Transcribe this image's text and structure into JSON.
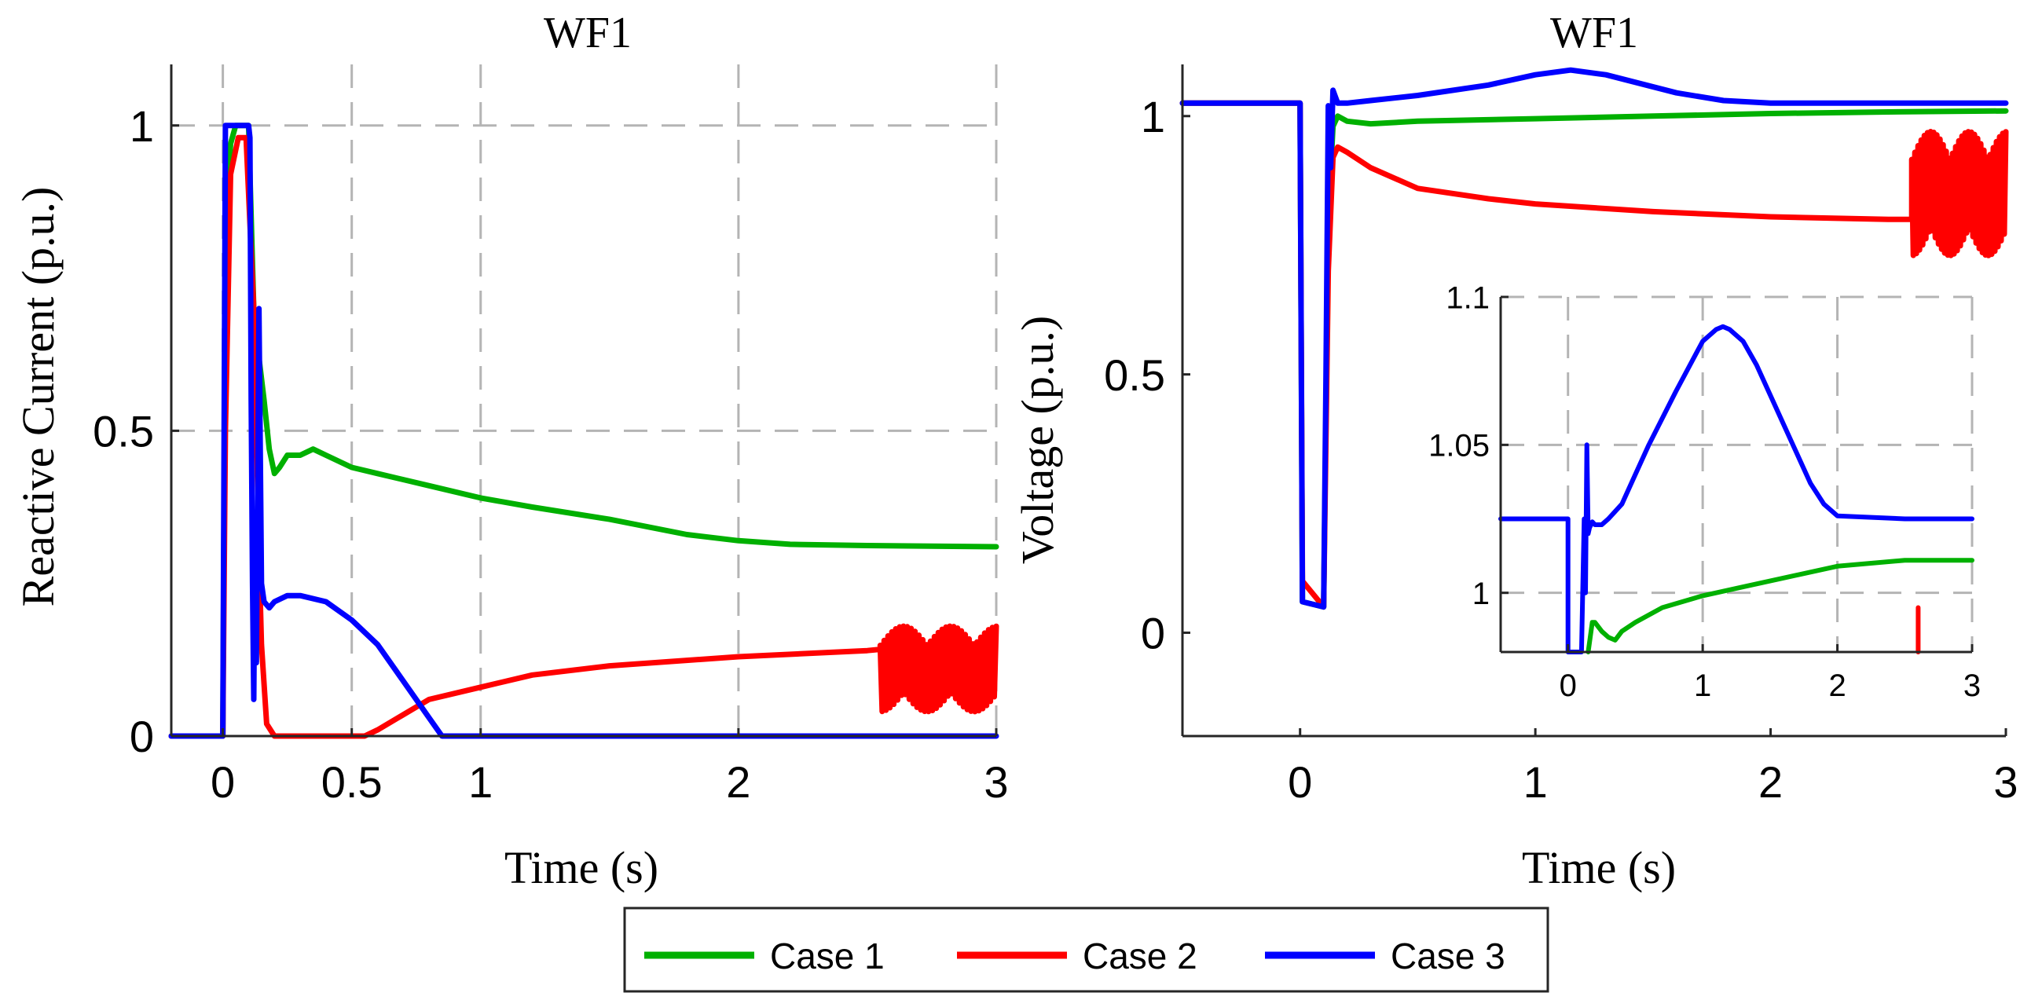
{
  "colors": {
    "case1": "#00b000",
    "case2": "#ff0000",
    "case3": "#0000ff",
    "grid": "#b4b4b4",
    "axis": "#262626"
  },
  "legend": {
    "placement": "bottom-center",
    "entries": [
      "Case 1",
      "Case 2",
      "Case 3"
    ]
  },
  "chart_data": [
    {
      "type": "line",
      "title": "WF1",
      "xlabel": "Time (s)",
      "ylabel": "Reactive Current (p.u.)",
      "xlim": [
        -0.2,
        3
      ],
      "ylim": [
        0,
        1.1
      ],
      "xticks": [
        0,
        0.5,
        1,
        2,
        3
      ],
      "xtick_labels": [
        "0",
        "0.5",
        "1",
        "2",
        "3"
      ],
      "yticks": [
        0,
        0.5,
        1
      ],
      "ytick_labels": [
        "0",
        "0.5",
        "1"
      ],
      "grid": true,
      "series": [
        {
          "name": "Case 1",
          "color": "#00b000",
          "x": [
            -0.2,
            0,
            0.01,
            0.03,
            0.05,
            0.07,
            0.1,
            0.11,
            0.12,
            0.13,
            0.14,
            0.16,
            0.18,
            0.2,
            0.22,
            0.25,
            0.3,
            0.35,
            0.4,
            0.5,
            0.6,
            0.8,
            1.0,
            1.2,
            1.5,
            1.8,
            2.0,
            2.2,
            2.5,
            3.0
          ],
          "y": [
            0,
            0,
            0.8,
            0.97,
            1.0,
            1.0,
            1.0,
            0.85,
            0.7,
            0.65,
            0.62,
            0.55,
            0.47,
            0.43,
            0.44,
            0.46,
            0.46,
            0.47,
            0.46,
            0.44,
            0.43,
            0.41,
            0.39,
            0.375,
            0.355,
            0.33,
            0.32,
            0.314,
            0.312,
            0.31
          ]
        },
        {
          "name": "Case 2",
          "color": "#ff0000",
          "x": [
            -0.2,
            0,
            0.01,
            0.03,
            0.06,
            0.09,
            0.12,
            0.14,
            0.15,
            0.17,
            0.2,
            0.5,
            0.55,
            0.6,
            0.7,
            0.8,
            1.0,
            1.2,
            1.5,
            2.0,
            2.5,
            2.55,
            2.6
          ],
          "y": [
            0,
            0,
            0.5,
            0.92,
            0.98,
            0.98,
            0.7,
            0.3,
            0.15,
            0.02,
            0,
            0,
            0,
            0.01,
            0.035,
            0.06,
            0.08,
            0.1,
            0.115,
            0.13,
            0.14,
            0.142,
            0.145
          ],
          "oscillation": {
            "from_x": 2.55,
            "to_x": 3.0,
            "center": 0.11,
            "amplitude": 0.07
          }
        },
        {
          "name": "Case 3",
          "color": "#0000ff",
          "x": [
            -0.2,
            0,
            0.01,
            0.1,
            0.105,
            0.11,
            0.115,
            0.12,
            0.125,
            0.13,
            0.14,
            0.15,
            0.16,
            0.18,
            0.2,
            0.25,
            0.3,
            0.4,
            0.5,
            0.6,
            0.7,
            0.8,
            0.85,
            3.0
          ],
          "y": [
            0,
            0,
            1.0,
            1.0,
            0.98,
            0.55,
            0.25,
            0.06,
            0.35,
            0.12,
            0.7,
            0.25,
            0.22,
            0.21,
            0.22,
            0.23,
            0.23,
            0.22,
            0.19,
            0.15,
            0.09,
            0.03,
            0,
            0
          ]
        }
      ]
    },
    {
      "type": "line",
      "title": "WF1",
      "xlabel": "Time (s)",
      "ylabel": "Voltage (p.u.)",
      "xlim": [
        -0.5,
        3
      ],
      "ylim": [
        -0.2,
        1.1
      ],
      "xticks": [
        0,
        1,
        2,
        3
      ],
      "xtick_labels": [
        "0",
        "1",
        "2",
        "3"
      ],
      "yticks": [
        0,
        0.5,
        1
      ],
      "ytick_labels": [
        "0",
        "0.5",
        "1"
      ],
      "grid": false,
      "series": [
        {
          "name": "Case 1",
          "color": "#00b000",
          "x": [
            -0.5,
            0,
            0.01,
            0.1,
            0.12,
            0.14,
            0.16,
            0.2,
            0.3,
            0.5,
            1.0,
            1.5,
            2.0,
            2.5,
            3.0
          ],
          "y": [
            1.025,
            1.025,
            0.06,
            0.05,
            0.8,
            0.98,
            1.0,
            0.99,
            0.985,
            0.99,
            0.995,
            1.0,
            1.005,
            1.008,
            1.01
          ]
        },
        {
          "name": "Case 2",
          "color": "#ff0000",
          "x": [
            -0.5,
            0,
            0.01,
            0.1,
            0.12,
            0.14,
            0.16,
            0.2,
            0.3,
            0.5,
            0.8,
            1.0,
            1.5,
            2.0,
            2.5,
            2.6
          ],
          "y": [
            1.025,
            1.025,
            0.1,
            0.05,
            0.7,
            0.92,
            0.94,
            0.93,
            0.9,
            0.86,
            0.84,
            0.83,
            0.815,
            0.805,
            0.8,
            0.8
          ],
          "oscillation": {
            "from_x": 2.6,
            "to_x": 3.0,
            "center": 0.85,
            "amplitude": 0.12
          }
        },
        {
          "name": "Case 3",
          "color": "#0000ff",
          "x": [
            -0.5,
            0,
            0.01,
            0.1,
            0.11,
            0.12,
            0.13,
            0.14,
            0.16,
            0.2,
            0.3,
            0.5,
            0.8,
            1.0,
            1.15,
            1.3,
            1.6,
            1.8,
            2.0,
            2.5,
            3.0
          ],
          "y": [
            1.025,
            1.025,
            0.06,
            0.05,
            0.5,
            1.02,
            0.9,
            1.05,
            1.025,
            1.025,
            1.03,
            1.04,
            1.06,
            1.08,
            1.089,
            1.08,
            1.045,
            1.03,
            1.025,
            1.025,
            1.025
          ]
        }
      ],
      "inset": {
        "xlim": [
          -0.5,
          3
        ],
        "ylim": [
          0.98,
          1.1
        ],
        "xticks": [
          0,
          1,
          2,
          3
        ],
        "xtick_labels": [
          "0",
          "1",
          "2",
          "3"
        ],
        "yticks": [
          1,
          1.05,
          1.1
        ],
        "ytick_labels": [
          "1",
          "1.05",
          "1.1"
        ],
        "grid": true,
        "series": [
          {
            "name": "Case 1",
            "color": "#00b000",
            "x": [
              0.15,
              0.18,
              0.2,
              0.25,
              0.3,
              0.35,
              0.4,
              0.5,
              0.7,
              1.0,
              1.3,
              1.6,
              2.0,
              2.5,
              3.0
            ],
            "y": [
              0.98,
              0.99,
              0.99,
              0.987,
              0.985,
              0.984,
              0.987,
              0.99,
              0.995,
              0.999,
              1.002,
              1.005,
              1.009,
              1.011,
              1.011
            ]
          },
          {
            "name": "Case 2",
            "color": "#ff0000",
            "x": [
              2.6,
              2.6
            ],
            "y": [
              0.98,
              0.995
            ]
          },
          {
            "name": "Case 3",
            "color": "#0000ff",
            "x": [
              -0.5,
              0,
              0.0,
              0.02,
              0.05,
              0.08,
              0.1,
              0.12,
              0.13,
              0.14,
              0.15,
              0.16,
              0.18,
              0.2,
              0.25,
              0.3,
              0.4,
              0.5,
              0.6,
              0.8,
              1.0,
              1.1,
              1.15,
              1.2,
              1.3,
              1.4,
              1.6,
              1.8,
              1.9,
              2.0,
              2.5,
              3.0
            ],
            "y": [
              1.025,
              1.025,
              0.98,
              0.98,
              0.98,
              0.98,
              0.98,
              1.025,
              1.0,
              1.05,
              1.02,
              1.022,
              1.024,
              1.023,
              1.023,
              1.025,
              1.03,
              1.04,
              1.05,
              1.068,
              1.085,
              1.089,
              1.09,
              1.089,
              1.085,
              1.077,
              1.057,
              1.037,
              1.03,
              1.026,
              1.025,
              1.025
            ]
          }
        ]
      }
    }
  ]
}
